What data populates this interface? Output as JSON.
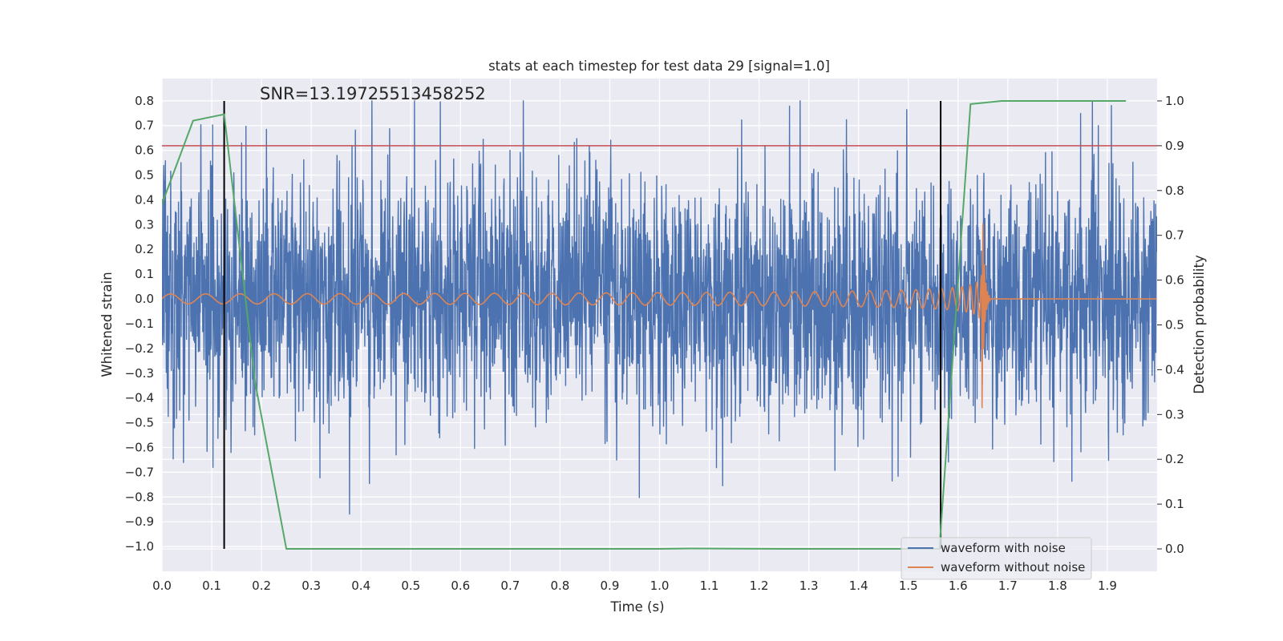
{
  "chart_data": {
    "type": "line",
    "title": "stats at each timestep for test data 29 [signal=1.0]",
    "xlabel": "Time (s)",
    "ylabel": "Whitened strain",
    "y2label": "Detection probability",
    "xlim": [
      0.0,
      2.0
    ],
    "ylim": [
      -1.1,
      0.89
    ],
    "y2lim": [
      -0.05,
      1.05
    ],
    "xticks": [
      "0.0",
      "0.1",
      "0.2",
      "0.3",
      "0.4",
      "0.5",
      "0.6",
      "0.7",
      "0.8",
      "0.9",
      "1.0",
      "1.1",
      "1.2",
      "1.3",
      "1.4",
      "1.5",
      "1.6",
      "1.7",
      "1.8",
      "1.9"
    ],
    "yticks": [
      "0.8",
      "0.7",
      "0.6",
      "0.5",
      "0.4",
      "0.3",
      "0.2",
      "0.1",
      "0.0",
      "−0.1",
      "−0.2",
      "−0.3",
      "−0.4",
      "−0.5",
      "−0.6",
      "−0.7",
      "−0.8",
      "−0.9",
      "−1.0"
    ],
    "y2ticks": [
      "1.0",
      "0.9",
      "0.8",
      "0.7",
      "0.6",
      "0.5",
      "0.4",
      "0.3",
      "0.2",
      "0.1",
      "0.0"
    ],
    "annotation": "SNR=13.19725513458252",
    "legend": [
      "waveform with noise",
      "waveform without noise"
    ],
    "legend_position": "bottom-right",
    "grid": true,
    "colors": {
      "noisy": "#4c72b0",
      "clean": "#dd8452",
      "probability": "#55a868",
      "threshold": "#c44e52",
      "markers": "#000000",
      "background": "#eaeaf2",
      "grid": "#ffffff"
    },
    "threshold_probability": 0.9,
    "vertical_markers_x": [
      0.125,
      1.565
    ],
    "noisy_waveform": {
      "x_range": [
        0.0,
        2.0
      ],
      "amplitude_range": [
        -0.95,
        0.8
      ],
      "approx_std": 0.25
    },
    "clean_waveform": {
      "type": "chirp",
      "start_amplitude": 0.02,
      "peak_amplitude": 0.65,
      "merger_x": 1.65,
      "start_frequency_hz": 14,
      "zero_after_x": 1.665
    },
    "series": [
      {
        "name": "Detection probability",
        "axis": "right",
        "x": [
          0.0,
          0.0625,
          0.125,
          0.1875,
          0.25,
          0.3125,
          0.5,
          0.75,
          1.0,
          1.0625,
          1.25,
          1.5,
          1.5625,
          1.625,
          1.6875,
          1.75,
          1.875,
          1.9375
        ],
        "values": [
          0.77,
          0.956,
          0.97,
          0.37,
          0.0,
          0.0,
          0.0,
          0.0,
          0.0,
          0.001,
          0.0,
          0.0,
          0.0,
          0.993,
          1.0,
          1.0,
          1.0,
          1.0
        ]
      }
    ]
  }
}
